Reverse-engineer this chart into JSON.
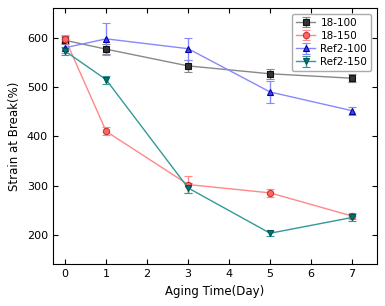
{
  "x": [
    0,
    1,
    3,
    5,
    7
  ],
  "series_order": [
    "18-100",
    "18-150",
    "Ref2-100",
    "Ref2-150"
  ],
  "series": {
    "18-100": {
      "y": [
        595,
        577,
        543,
        527,
        518
      ],
      "yerr": [
        8,
        10,
        12,
        10,
        8
      ],
      "color": "#888888",
      "marker": "s",
      "markerfacecolor": "#333333",
      "markeredgecolor": "#111111",
      "label": "18-100"
    },
    "18-150": {
      "y": [
        598,
        410,
        302,
        285,
        238
      ],
      "yerr": [
        7,
        8,
        18,
        8,
        6
      ],
      "color": "#FF8888",
      "marker": "o",
      "markerfacecolor": "#FF6666",
      "markeredgecolor": "#CC3333",
      "label": "18-150"
    },
    "Ref2-100": {
      "y": [
        580,
        598,
        578,
        490,
        452
      ],
      "yerr": [
        10,
        32,
        22,
        22,
        8
      ],
      "color": "#8888FF",
      "marker": "^",
      "markerfacecolor": "#4444DD",
      "markeredgecolor": "#0000AA",
      "label": "Ref2-100"
    },
    "Ref2-150": {
      "y": [
        573,
        515,
        295,
        203,
        235
      ],
      "yerr": [
        8,
        8,
        10,
        5,
        7
      ],
      "color": "#339999",
      "marker": "v",
      "markerfacecolor": "#007777",
      "markeredgecolor": "#005555",
      "label": "Ref2-150"
    }
  },
  "xlabel": "Aging Time(Day)",
  "ylabel": "Strain at Break(%)",
  "xlim": [
    -0.3,
    7.6
  ],
  "ylim": [
    140,
    660
  ],
  "yticks": [
    200,
    300,
    400,
    500,
    600
  ],
  "xticks": [
    0,
    1,
    2,
    3,
    4,
    5,
    6,
    7
  ],
  "legend_loc": "upper right",
  "background_color": "#ffffff",
  "figsize": [
    3.85,
    3.06
  ],
  "dpi": 100
}
